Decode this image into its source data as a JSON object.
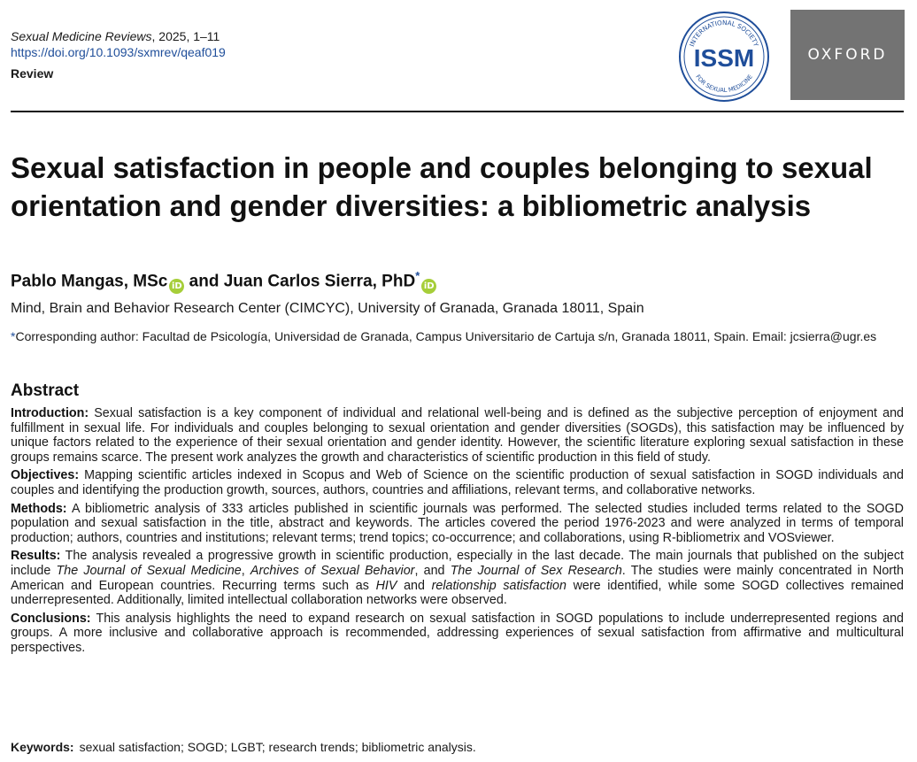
{
  "header": {
    "journal_name": "Sexual Medicine Reviews",
    "journal_issue": ", 2025, 1–11",
    "doi": "https://doi.org/10.1093/sxmrev/qeaf019",
    "article_type": "Review",
    "issm_logo": {
      "arc_text_top": "INTERNATIONAL SOCIETY",
      "center_text": "ISSM",
      "arc_text_bottom": "FOR SEXUAL MEDICINE",
      "color": "#1f4e9a"
    },
    "oxford_logo_text": "OXFORD"
  },
  "title": "Sexual satisfaction in people and couples belonging to sexual orientation and gender diversities: a bibliometric analysis",
  "authors": {
    "author1": "Pablo Mangas, MSc",
    "conjunction": " and ",
    "author2": "Juan Carlos Sierra, PhD",
    "corresponding_mark": "*",
    "orcid_icon": "orcid-icon"
  },
  "affiliation": "Mind, Brain and Behavior Research Center (CIMCYC), University of Granada, Granada 18011, Spain",
  "corresponding": {
    "mark": "*",
    "text": "Corresponding author: Facultad de Psicología, Universidad de Granada, Campus Universitario de Cartuja s/n, Granada 18011, Spain. Email: jcsierra@ugr.es"
  },
  "abstract": {
    "heading": "Abstract",
    "introduction": {
      "label": "Introduction:",
      "text": " Sexual satisfaction is a key component of individual and relational well-being and is defined as the subjective perception of enjoyment and fulfillment in sexual life. For individuals and couples belonging to sexual orientation and gender diversities (SOGDs), this satisfaction may be influenced by unique factors related to the experience of their sexual orientation and gender identity. However, the scientific literature exploring sexual satisfaction in these groups remains scarce. The present work analyzes the growth and characteristics of scientific production in this field of study."
    },
    "objectives": {
      "label": "Objectives:",
      "text": " Mapping scientific articles indexed in Scopus and Web of Science on the scientific production of sexual satisfaction in SOGD individuals and couples and identifying the production growth, sources, authors, countries and affiliations, relevant terms, and collaborative networks."
    },
    "methods": {
      "label": "Methods:",
      "text": " A bibliometric analysis of 333 articles published in scientific journals was performed. The selected studies included terms related to the SOGD population and sexual satisfaction in the title, abstract and keywords. The articles covered the period 1976-2023 and were analyzed in terms of temporal production; authors, countries and institutions; relevant terms; trend topics; co-occurrence; and collaborations, using R-bibliometrix and VOSviewer."
    },
    "results": {
      "label": "Results:",
      "t1": " The analysis revealed a progressive growth in scientific production, especially in the last decade. The main journals that published on the subject include ",
      "j1": "The Journal of Sexual Medicine",
      "t2": ", ",
      "j2": "Archives of Sexual Behavior",
      "t3": ", and ",
      "j3": "The Journal of Sex Research",
      "t4": ". The studies were mainly concentrated in North American and European countries. Recurring terms such as ",
      "term1": "HIV",
      "t5": " and ",
      "term2": "relationship satisfaction",
      "t6": " were identified, while some SOGD collectives remained underrepresented. Additionally, limited intellectual collaboration networks were observed."
    },
    "conclusions": {
      "label": "Conclusions:",
      "text": " This analysis highlights the need to expand research on sexual satisfaction in SOGD populations to include underrepresented regions and groups. A more inclusive and collaborative approach is recommended, addressing experiences of sexual satisfaction from affirmative and multicultural perspectives."
    }
  },
  "keywords": {
    "label": "Keywords:",
    "text": "sexual satisfaction; SOGD; LGBT; research trends; bibliometric analysis."
  }
}
